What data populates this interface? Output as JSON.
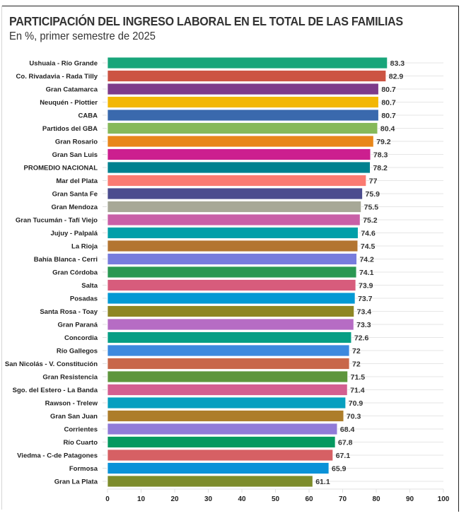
{
  "header": {
    "title": "PARTICIPACIÓN DEL INGRESO LABORAL EN EL TOTAL DE LAS FAMILIAS",
    "subtitle": "En %, primer semestre de 2025"
  },
  "chart_data": {
    "type": "bar",
    "orientation": "horizontal",
    "title": "PARTICIPACIÓN DEL INGRESO LABORAL EN EL TOTAL DE LAS FAMILIAS",
    "subtitle": "En %, primer semestre de 2025",
    "xlabel": "",
    "ylabel": "",
    "xlim": [
      0,
      100
    ],
    "xticks": [
      0,
      10,
      20,
      30,
      40,
      50,
      60,
      70,
      80,
      90,
      100
    ],
    "grid": "horizontal-rows",
    "legend": "none",
    "categories": [
      "Ushuaia - Río Grande",
      "Co. Rivadavia - Rada Tilly",
      "Gran Catamarca",
      "Neuquén - Plottier",
      "CABA",
      "Partidos del GBA",
      "Gran Rosario",
      "Gran San Luis",
      "PROMEDIO NACIONAL",
      "Mar del Plata",
      "Gran Santa Fe",
      "Gran Mendoza",
      "Gran Tucumán - Tafí Viejo",
      "Jujuy - Palpalá",
      "La Rioja",
      "Bahía Blanca - Cerri",
      "Gran Córdoba",
      "Salta",
      "Posadas",
      "Santa Rosa - Toay",
      "Gran Paraná",
      "Concordia",
      "Río Gallegos",
      "San Nicolás - V. Constitución",
      "Gran Resistencia",
      "Sgo. del Estero - La Banda",
      "Rawson - Trelew",
      "Gran San Juan",
      "Corrientes",
      "Río Cuarto",
      "Viedma - C-de Patagones",
      "Formosa",
      "Gran La Plata"
    ],
    "values": [
      83.3,
      82.9,
      80.7,
      80.7,
      80.7,
      80.4,
      79.2,
      78.3,
      78.2,
      77,
      75.9,
      75.5,
      75.2,
      74.6,
      74.5,
      74.2,
      74.1,
      73.9,
      73.7,
      73.4,
      73.3,
      72.6,
      72,
      72,
      71.5,
      71.4,
      70.9,
      70.3,
      68.4,
      67.8,
      67.1,
      65.9,
      61.1
    ],
    "value_labels": [
      "83.3",
      "82.9",
      "80.7",
      "80.7",
      "80.7",
      "80.4",
      "79.2",
      "78.3",
      "78.2",
      "77",
      "75.9",
      "75.5",
      "75.2",
      "74.6",
      "74.5",
      "74.2",
      "74.1",
      "73.9",
      "73.7",
      "73.4",
      "73.3",
      "72.6",
      "72",
      "72",
      "71.5",
      "71.4",
      "70.9",
      "70.3",
      "68.4",
      "67.8",
      "67.1",
      "65.9",
      "61.1"
    ],
    "colors": [
      "#18a57a",
      "#cc5443",
      "#7d3b8a",
      "#f2b705",
      "#3a69ad",
      "#86b95a",
      "#e8861a",
      "#cc1f8f",
      "#00818f",
      "#fb7b72",
      "#4b4c8e",
      "#a7a897",
      "#c860a7",
      "#019fa8",
      "#b37531",
      "#777cdd",
      "#2a9852",
      "#d75c7c",
      "#0399d4",
      "#8e8624",
      "#b66cc4",
      "#069e84",
      "#3c89de",
      "#c8674a",
      "#5e963d",
      "#d35e90",
      "#069fbf",
      "#ad7d2a",
      "#917bd8",
      "#069960",
      "#d66064",
      "#0a92d8",
      "#7d8c2b"
    ]
  }
}
